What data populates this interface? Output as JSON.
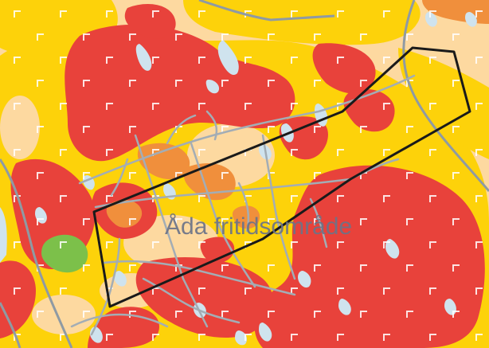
{
  "map": {
    "place_label": "Åda fritidsområde",
    "colors": {
      "soil_light": "#fdd9a0",
      "soil_yellow": "#fdd20a",
      "soil_red": "#e8423b",
      "soil_orange": "#f08f3c",
      "water_ice": "#cfe3ee",
      "grass_green": "#7cc04a",
      "road_grey": "#8f9aa3",
      "path_grey": "#a3adb5",
      "boundary_black": "#1a1a1a",
      "label_grey": "#6b7388"
    },
    "icons": [
      "bracket-marker-icon"
    ]
  }
}
